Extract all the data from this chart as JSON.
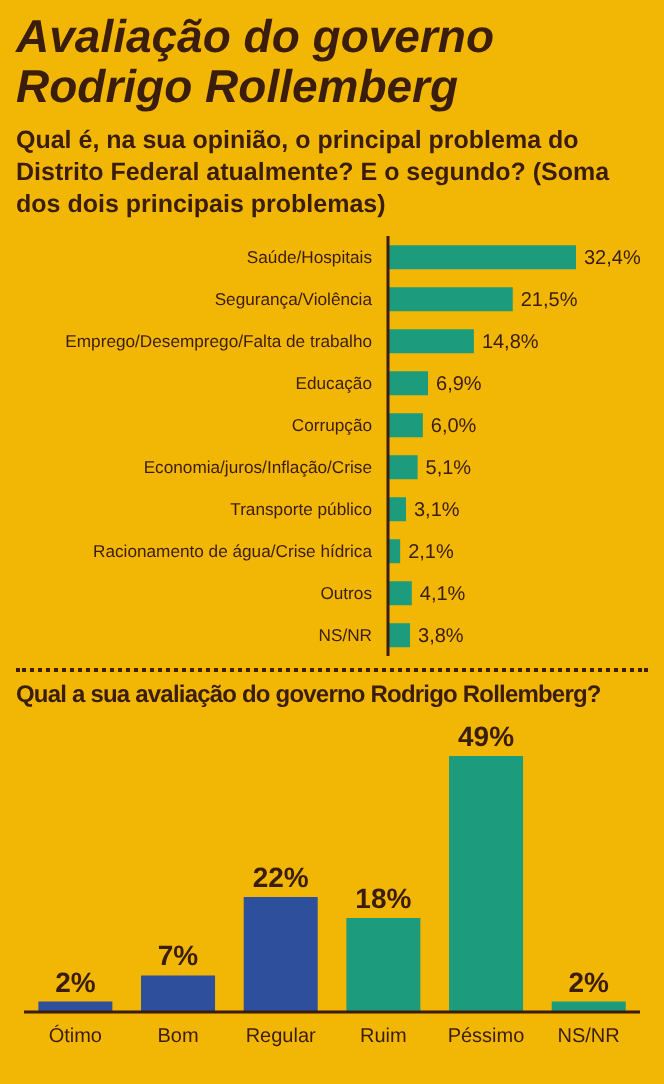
{
  "chart_data": [
    {
      "type": "bar",
      "orientation": "horizontal",
      "title": "Avaliação do governo Rodrigo Rollemberg",
      "subtitle": "Qual é, na sua opinião, o principal problema do Distrito Federal atualmente? E o segundo? (Soma dos dois principais problemas)",
      "categories": [
        "Saúde/Hospitais",
        "Segurança/Violência",
        "Emprego/Desemprego/Falta de trabalho",
        "Educação",
        "Corrupção",
        "Economia/juros/Inflação/Crise",
        "Transporte público",
        "Racionamento de água/Crise hídrica",
        "Outros",
        "NS/NR"
      ],
      "values": [
        32.4,
        21.5,
        14.8,
        6.9,
        6.0,
        5.1,
        3.1,
        2.1,
        4.1,
        3.8
      ],
      "color": "#1c9c7c",
      "value_labels": [
        "32,4%",
        "21,5%",
        "14,8%",
        "6,9%",
        "6,0%",
        "5,1%",
        "3,1%",
        "2,1%",
        "4,1%",
        "3,8%"
      ]
    },
    {
      "type": "bar",
      "title": "Qual a sua avaliação do governo Rodrigo Rollemberg?",
      "categories": [
        "Ótimo",
        "Bom",
        "Regular",
        "Ruim",
        "Péssimo",
        "NS/NR"
      ],
      "values": [
        2,
        7,
        22,
        18,
        49,
        2
      ],
      "colors": [
        "#2d4f9c",
        "#2d4f9c",
        "#2d4f9c",
        "#1c9c7c",
        "#1c9c7c",
        "#1c9c7c"
      ],
      "value_labels": [
        "2%",
        "7%",
        "22%",
        "18%",
        "49%",
        "2%"
      ]
    }
  ]
}
